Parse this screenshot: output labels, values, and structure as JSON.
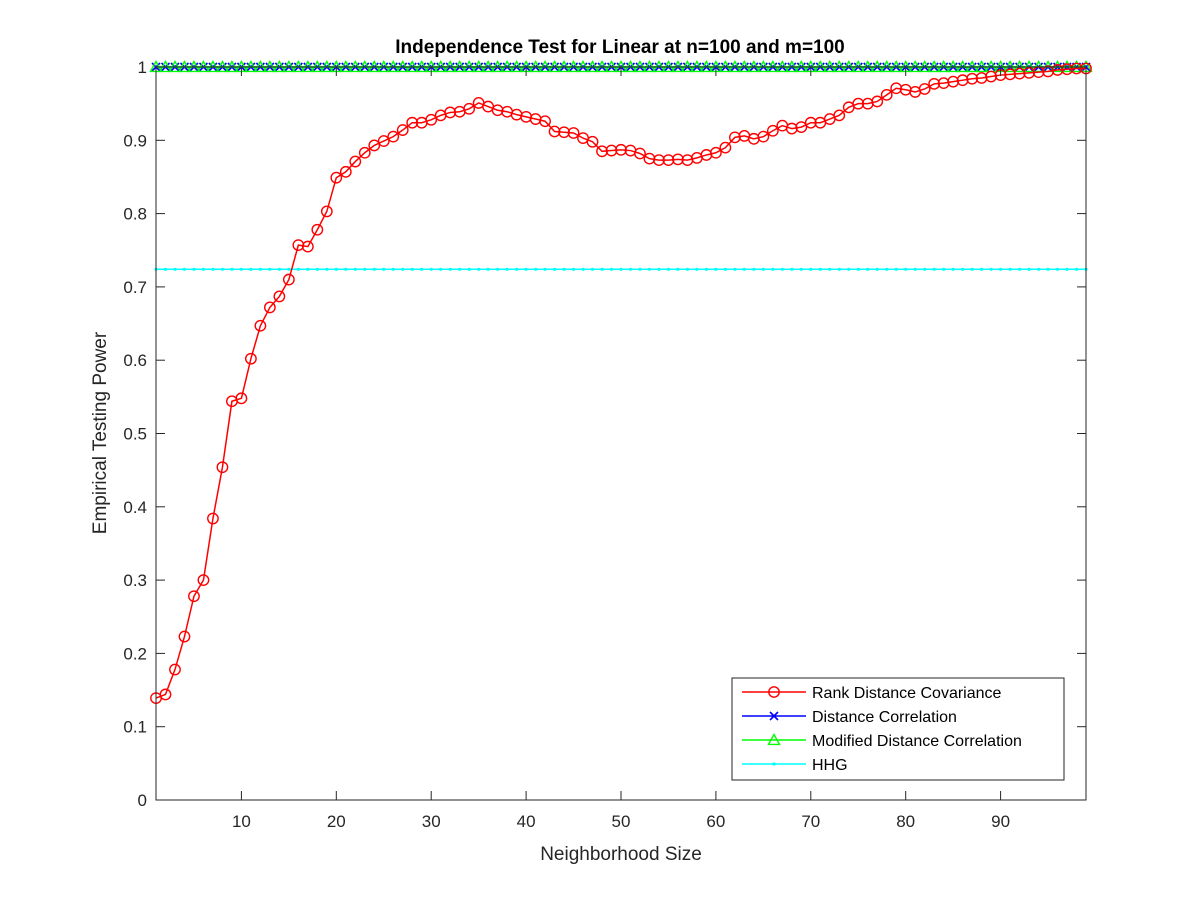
{
  "chart_data": {
    "type": "line",
    "title": "Independence Test for Linear at n=100 and m=100",
    "xlabel": "Neighborhood Size",
    "ylabel": "Empirical Testing Power",
    "xlim": [
      1,
      99
    ],
    "ylim": [
      0,
      1
    ],
    "xticks": [
      10,
      20,
      30,
      40,
      50,
      60,
      70,
      80,
      90
    ],
    "yticks": [
      0,
      0.1,
      0.2,
      0.3,
      0.4,
      0.5,
      0.6,
      0.7,
      0.8,
      0.9,
      1
    ],
    "grid": false,
    "legend_placement": "bottom-right",
    "series": [
      {
        "name": "Rank Distance Covariance",
        "color": "#ff0000",
        "marker": "circle",
        "x": [
          1,
          2,
          3,
          4,
          5,
          6,
          7,
          8,
          9,
          10,
          11,
          12,
          13,
          14,
          15,
          16,
          17,
          18,
          19,
          20,
          21,
          22,
          23,
          24,
          25,
          26,
          27,
          28,
          29,
          30,
          31,
          32,
          33,
          34,
          35,
          36,
          37,
          38,
          39,
          40,
          41,
          42,
          43,
          44,
          45,
          46,
          47,
          48,
          49,
          50,
          51,
          52,
          53,
          54,
          55,
          56,
          57,
          58,
          59,
          60,
          61,
          62,
          63,
          64,
          65,
          66,
          67,
          68,
          69,
          70,
          71,
          72,
          73,
          74,
          75,
          76,
          77,
          78,
          79,
          80,
          81,
          82,
          83,
          84,
          85,
          86,
          87,
          88,
          89,
          90,
          91,
          92,
          93,
          94,
          95,
          96,
          97,
          98,
          99
        ],
        "values": [
          0.139,
          0.144,
          0.178,
          0.223,
          0.278,
          0.3,
          0.384,
          0.454,
          0.544,
          0.548,
          0.602,
          0.647,
          0.672,
          0.687,
          0.71,
          0.757,
          0.755,
          0.778,
          0.803,
          0.849,
          0.857,
          0.871,
          0.883,
          0.893,
          0.899,
          0.905,
          0.914,
          0.924,
          0.924,
          0.928,
          0.934,
          0.938,
          0.939,
          0.943,
          0.951,
          0.946,
          0.941,
          0.939,
          0.935,
          0.932,
          0.929,
          0.926,
          0.912,
          0.911,
          0.91,
          0.903,
          0.898,
          0.885,
          0.886,
          0.887,
          0.886,
          0.882,
          0.875,
          0.873,
          0.873,
          0.874,
          0.873,
          0.876,
          0.88,
          0.883,
          0.89,
          0.904,
          0.906,
          0.902,
          0.905,
          0.913,
          0.92,
          0.916,
          0.918,
          0.924,
          0.924,
          0.929,
          0.934,
          0.945,
          0.95,
          0.95,
          0.953,
          0.962,
          0.971,
          0.969,
          0.966,
          0.97,
          0.977,
          0.978,
          0.98,
          0.982,
          0.984,
          0.985,
          0.987,
          0.989,
          0.99,
          0.991,
          0.992,
          0.993,
          0.994,
          0.996,
          0.997,
          0.998,
          0.998
        ]
      },
      {
        "name": "Distance Correlation",
        "color": "#0000ff",
        "marker": "x",
        "constant_value": 1.0
      },
      {
        "name": "Modified Distance Correlation",
        "color": "#00ff00",
        "marker": "triangle",
        "constant_value": 1.0
      },
      {
        "name": "HHG",
        "color": "#00ffff",
        "marker": "dot",
        "constant_value": 0.724
      }
    ]
  }
}
